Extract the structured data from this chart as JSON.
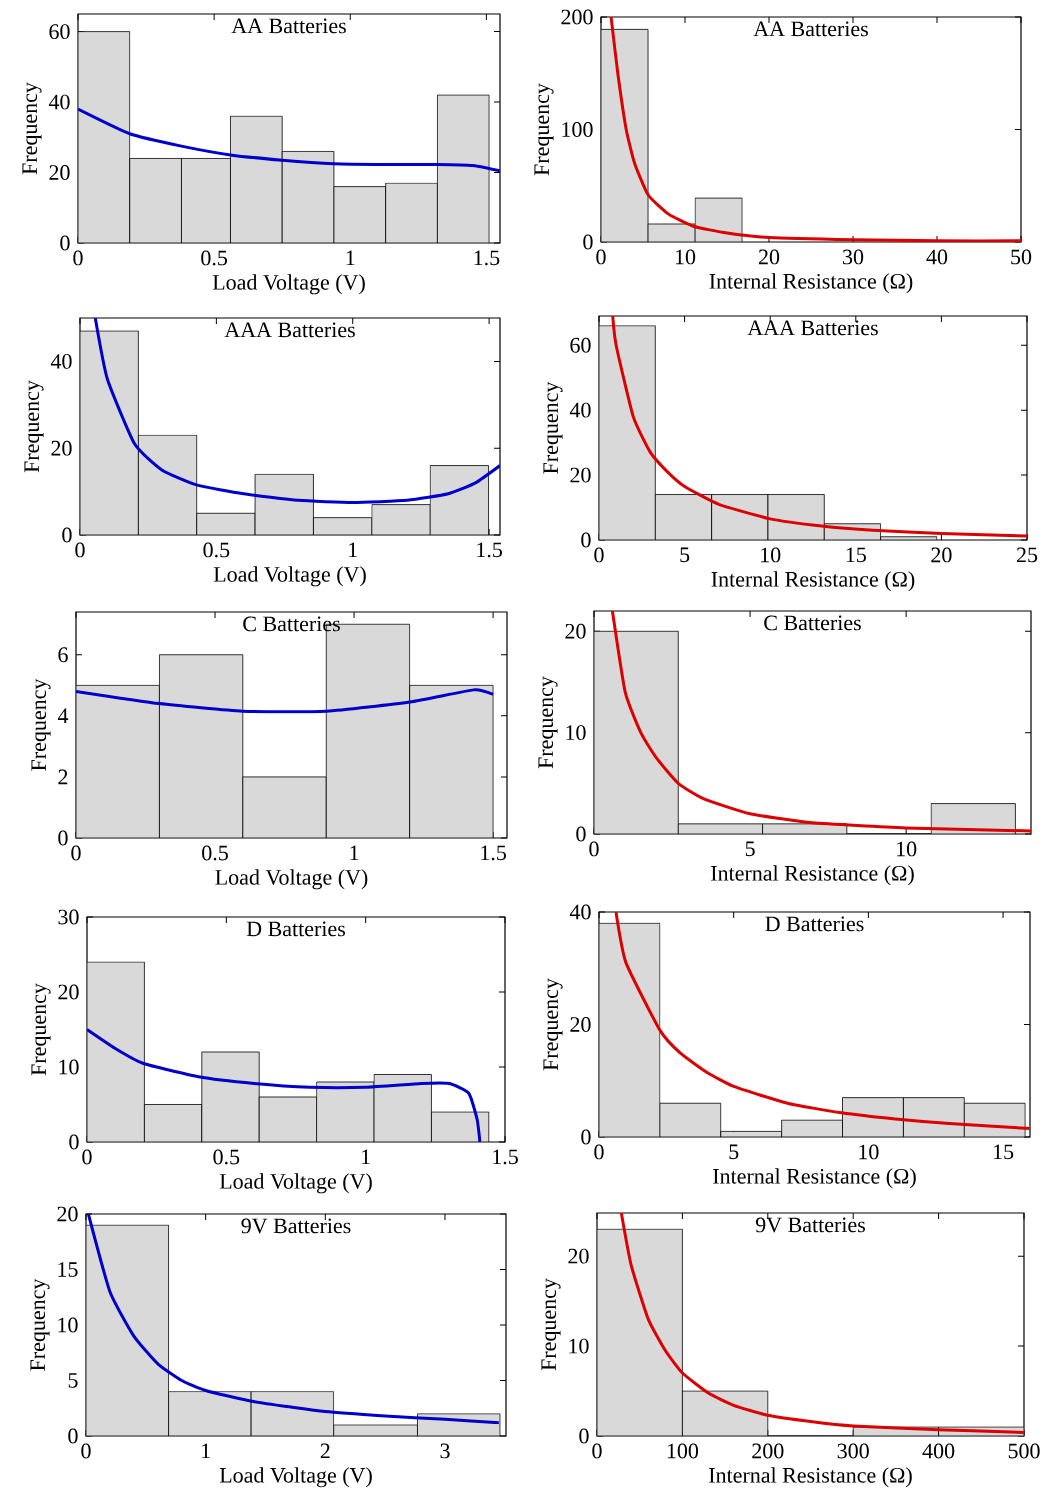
{
  "chart_data": [
    {
      "type": "histogram",
      "title": "AA Batteries",
      "xlabel": "Load Voltage (V)",
      "ylabel": "Frequency",
      "xlim": [
        0,
        1.55
      ],
      "ylim": [
        0,
        65
      ],
      "xticks": [
        0,
        0.5,
        1,
        1.5
      ],
      "yticks": [
        0,
        20,
        40,
        60
      ],
      "series": [
        {
          "type": "histogram",
          "color": "#d9d9d9",
          "bins": [
            0,
            0.19,
            0.38,
            0.56,
            0.75,
            0.94,
            1.13,
            1.32,
            1.51
          ],
          "values": [
            60,
            24,
            24,
            36,
            26,
            16,
            17,
            42
          ]
        },
        {
          "type": "line",
          "color": "#0000cc",
          "x": [
            0,
            0.19,
            0.38,
            0.56,
            0.75,
            0.94,
            1.13,
            1.32,
            1.45,
            1.55
          ],
          "values": [
            38,
            31,
            27.5,
            25,
            23.5,
            22.5,
            22.3,
            22.3,
            22,
            20.5
          ]
        }
      ]
    },
    {
      "type": "histogram",
      "title": "AA Batteries",
      "xlabel": "Internal Resistance (Ω)",
      "ylabel": "Frequency",
      "xlim": [
        0,
        50
      ],
      "ylim": [
        0,
        200
      ],
      "xticks": [
        0,
        10,
        20,
        30,
        40,
        50
      ],
      "yticks": [
        0,
        100,
        200
      ],
      "series": [
        {
          "type": "histogram",
          "color": "#d9d9d9",
          "bins": [
            0,
            5.6,
            11.2,
            16.8,
            22.4,
            28
          ],
          "values": [
            189,
            16,
            39,
            null,
            null
          ]
        },
        {
          "type": "line",
          "color": "#dd0000",
          "x": [
            1.2,
            2,
            3,
            4,
            5.6,
            8,
            11,
            15,
            20,
            30,
            40,
            50
          ],
          "values": [
            200,
            150,
            100,
            70,
            42,
            25,
            14,
            8,
            4,
            2,
            1,
            1
          ]
        }
      ]
    },
    {
      "type": "histogram",
      "title": "AAA Batteries",
      "xlabel": "Load Voltage (V)",
      "ylabel": "Frequency",
      "xlim": [
        0,
        1.54
      ],
      "ylim": [
        0,
        50
      ],
      "xticks": [
        0,
        0.5,
        1,
        1.5
      ],
      "yticks": [
        0,
        20,
        40
      ],
      "series": [
        {
          "type": "histogram",
          "color": "#d9d9d9",
          "bins": [
            0,
            0.214,
            0.428,
            0.642,
            0.856,
            1.07,
            1.284,
            1.498
          ],
          "values": [
            47,
            23,
            5,
            14,
            4,
            7,
            16
          ]
        },
        {
          "type": "line",
          "color": "#0000cc",
          "x": [
            0.056,
            0.1,
            0.2,
            0.3,
            0.43,
            0.6,
            0.8,
            1.0,
            1.2,
            1.35,
            1.45,
            1.54
          ],
          "values": [
            50,
            36,
            21,
            15,
            11.5,
            9.5,
            8,
            7.5,
            8,
            9.5,
            12,
            16
          ]
        }
      ]
    },
    {
      "type": "histogram",
      "title": "AAA Batteries",
      "xlabel": "Internal Resistance (Ω)",
      "ylabel": "Frequency",
      "xlim": [
        0,
        25
      ],
      "ylim": [
        0,
        69
      ],
      "xticks": [
        0,
        5,
        10,
        15,
        20,
        25
      ],
      "yticks": [
        0,
        20,
        40,
        60
      ],
      "series": [
        {
          "type": "histogram",
          "color": "#d9d9d9",
          "bins": [
            0,
            3.29,
            6.58,
            9.87,
            13.16,
            16.45,
            19.74
          ],
          "values": [
            66,
            14,
            14,
            14,
            5,
            1
          ]
        },
        {
          "type": "line",
          "color": "#dd0000",
          "x": [
            0.8,
            1,
            2,
            3,
            4,
            5,
            7,
            10,
            13,
            16,
            20,
            25
          ],
          "values": [
            69,
            60,
            38,
            27,
            21,
            16.5,
            11,
            6.5,
            4.3,
            3,
            2,
            1.2
          ]
        }
      ]
    },
    {
      "type": "histogram",
      "title": "C Batteries",
      "xlabel": "Load Voltage (V)",
      "ylabel": "Frequency",
      "xlim": [
        0,
        1.55
      ],
      "ylim": [
        0,
        7.4
      ],
      "xticks": [
        0,
        0.5,
        1,
        1.5
      ],
      "yticks": [
        0,
        2,
        4,
        6
      ],
      "series": [
        {
          "type": "histogram",
          "color": "#d9d9d9",
          "bins": [
            0,
            0.3,
            0.6,
            0.9,
            1.2,
            1.5
          ],
          "values": [
            5,
            6,
            2,
            7,
            5
          ]
        },
        {
          "type": "line",
          "color": "#0000cc",
          "x": [
            0,
            0.3,
            0.6,
            0.9,
            1.2,
            1.43,
            1.5
          ],
          "values": [
            4.8,
            4.4,
            4.15,
            4.15,
            4.45,
            4.85,
            4.7
          ]
        }
      ]
    },
    {
      "type": "histogram",
      "title": "C Batteries",
      "xlabel": "Internal Resistance (Ω)",
      "ylabel": "Frequency",
      "xlim": [
        0,
        14
      ],
      "ylim": [
        0,
        22
      ],
      "xticks": [
        0,
        5,
        10
      ],
      "yticks": [
        0,
        10,
        20
      ],
      "series": [
        {
          "type": "histogram",
          "color": "#d9d9d9",
          "bins": [
            0,
            2.7,
            5.4,
            8.1,
            10.8,
            13.5
          ],
          "values": [
            20,
            1,
            1,
            0,
            3
          ]
        },
        {
          "type": "line",
          "color": "#dd0000",
          "x": [
            0.59,
            1,
            1.5,
            2,
            2.7,
            3.5,
            5,
            7,
            10,
            14
          ],
          "values": [
            22,
            14,
            10,
            7.5,
            5,
            3.5,
            2,
            1.1,
            0.6,
            0.3
          ]
        }
      ]
    },
    {
      "type": "histogram",
      "title": "D Batteries",
      "xlabel": "Load Voltage (V)",
      "ylabel": "Frequency",
      "xlim": [
        0,
        1.5
      ],
      "ylim": [
        0,
        30
      ],
      "xticks": [
        0,
        0.5,
        1,
        1.5
      ],
      "yticks": [
        0,
        10,
        20,
        30
      ],
      "series": [
        {
          "type": "histogram",
          "color": "#d9d9d9",
          "bins": [
            0,
            0.206,
            0.412,
            0.618,
            0.824,
            1.03,
            1.236,
            1.442
          ],
          "values": [
            24,
            5,
            12,
            6,
            8,
            9,
            4
          ]
        },
        {
          "type": "line",
          "color": "#0000cc",
          "x": [
            0,
            0.1,
            0.2,
            0.4,
            0.6,
            0.8,
            1.0,
            1.2,
            1.3,
            1.37,
            1.4,
            1.41
          ],
          "values": [
            15,
            12.5,
            10.5,
            8.7,
            7.8,
            7.3,
            7.3,
            7.8,
            7.8,
            6.5,
            3,
            0
          ]
        }
      ]
    },
    {
      "type": "histogram",
      "title": "D Batteries",
      "xlabel": "Internal Resistance (Ω)",
      "ylabel": "Frequency",
      "xlim": [
        0,
        16
      ],
      "ylim": [
        0,
        40
      ],
      "xticks": [
        0,
        5,
        10,
        15
      ],
      "yticks": [
        0,
        20,
        40
      ],
      "series": [
        {
          "type": "histogram",
          "color": "#d9d9d9",
          "bins": [
            0,
            2.26,
            4.52,
            6.78,
            9.04,
            11.3,
            13.56,
            15.82
          ],
          "values": [
            38,
            6,
            1,
            3,
            7,
            7,
            6
          ]
        },
        {
          "type": "line",
          "color": "#dd0000",
          "x": [
            0.63,
            1,
            2.26,
            3,
            4,
            5,
            7,
            9,
            11,
            13,
            16
          ],
          "values": [
            40,
            31,
            19,
            15,
            11.5,
            9,
            6,
            4.3,
            3.2,
            2.4,
            1.5
          ]
        }
      ]
    },
    {
      "type": "histogram",
      "title": "9V Batteries",
      "xlabel": "Load Voltage (V)",
      "ylabel": "Frequency",
      "xlim": [
        0,
        3.51
      ],
      "ylim": [
        0,
        20
      ],
      "xticks": [
        0,
        1,
        2,
        3
      ],
      "yticks": [
        0,
        5,
        10,
        15,
        20
      ],
      "series": [
        {
          "type": "histogram",
          "color": "#d9d9d9",
          "bins": [
            0,
            0.69,
            1.38,
            2.07,
            2.77,
            3.46
          ],
          "values": [
            19,
            4,
            4,
            1,
            2
          ]
        },
        {
          "type": "line",
          "color": "#0000cc",
          "x": [
            0.02,
            0.2,
            0.4,
            0.6,
            0.8,
            1.0,
            1.4,
            2.0,
            2.5,
            3.0,
            3.45
          ],
          "values": [
            20,
            13,
            9,
            6.5,
            5,
            4.1,
            3.1,
            2.2,
            1.8,
            1.5,
            1.2
          ]
        }
      ]
    },
    {
      "type": "histogram",
      "title": "9V Batteries",
      "xlabel": "Internal Resistance (Ω)",
      "ylabel": "Frequency",
      "xlim": [
        0,
        500
      ],
      "ylim": [
        0,
        24.8
      ],
      "xticks": [
        0,
        100,
        200,
        300,
        400,
        500
      ],
      "yticks": [
        0,
        10,
        20
      ],
      "series": [
        {
          "type": "histogram",
          "color": "#d9d9d9",
          "bins": [
            0,
            100,
            200,
            300,
            400,
            500
          ],
          "values": [
            23,
            5,
            0,
            1,
            1
          ]
        },
        {
          "type": "line",
          "color": "#dd0000",
          "x": [
            28.5,
            40,
            60,
            80,
            100,
            130,
            160,
            200,
            250,
            300,
            400,
            500
          ],
          "values": [
            24.8,
            19,
            13,
            9.5,
            7,
            4.8,
            3.4,
            2.3,
            1.6,
            1.1,
            0.7,
            0.4
          ]
        }
      ]
    }
  ]
}
